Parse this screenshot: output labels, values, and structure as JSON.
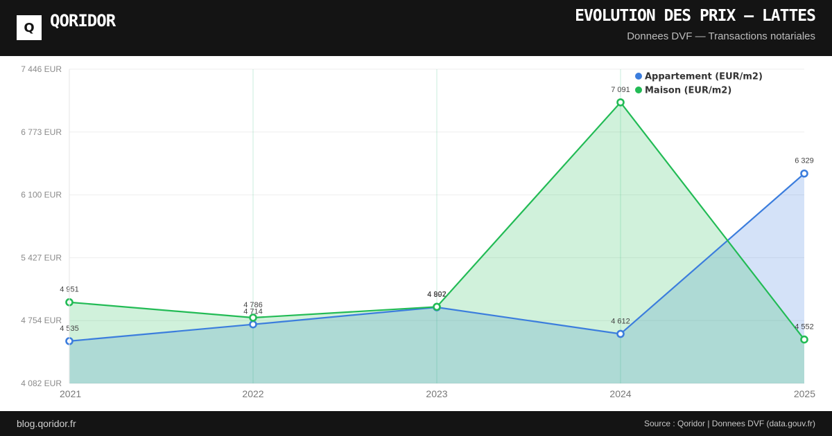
{
  "header": {
    "logo_letter": "Q",
    "brand": "QORIDOR",
    "title": "EVOLUTION DES PRIX — LATTES",
    "subtitle": "Donnees DVF — Transactions notariales"
  },
  "footer": {
    "left": "blog.qoridor.fr",
    "right": "Source : Qoridor | Donnees DVF (data.gouv.fr)"
  },
  "colors": {
    "appartement": "#3b7ddd",
    "maison": "#22bb55",
    "header_bg": "#141414"
  },
  "chart_data": {
    "type": "area",
    "categories": [
      "2021",
      "2022",
      "2023",
      "2024",
      "2025"
    ],
    "y_ticks": [
      "7 446 EUR",
      "6 773 EUR",
      "6 100 EUR",
      "5 427 EUR",
      "4 754 EUR",
      "4 082 EUR"
    ],
    "ylim": [
      4082,
      7446
    ],
    "grid": true,
    "legend_position": "top-right",
    "series": [
      {
        "name": "Appartement (EUR/m2)",
        "values": [
          4535,
          4714,
          4897,
          4612,
          6329
        ],
        "labels": [
          "4 535",
          "4 714",
          "4 897",
          "4 612",
          "6 329"
        ]
      },
      {
        "name": "Maison (EUR/m2)",
        "values": [
          4951,
          4786,
          4902,
          7091,
          4552
        ],
        "labels": [
          "4 951",
          "4 786",
          "4 902",
          "7 091",
          "4 552"
        ]
      }
    ]
  }
}
